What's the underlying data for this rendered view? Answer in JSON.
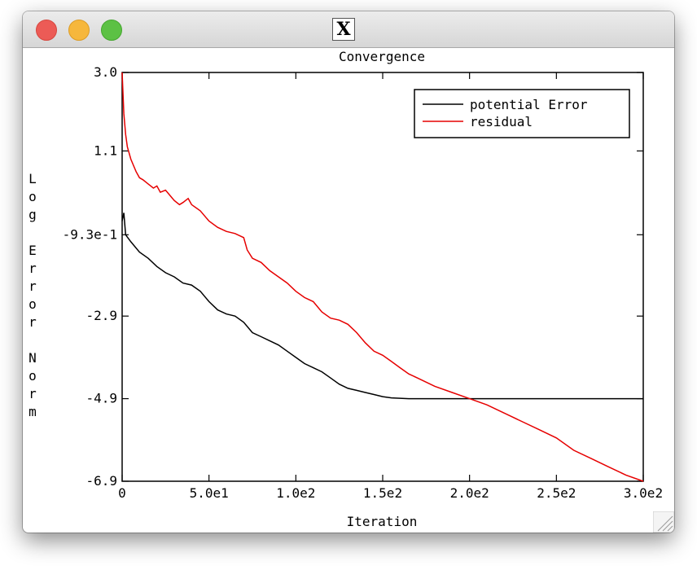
{
  "window": {
    "app_icon": "x11-icon"
  },
  "chart_data": {
    "type": "line",
    "title": "Convergence",
    "xlabel": "Iteration",
    "ylabel": "Log Error Norm",
    "xlim": [
      0,
      300
    ],
    "ylim": [
      -6.9,
      3.0
    ],
    "xticks": [
      0,
      50,
      100,
      150,
      200,
      250,
      300
    ],
    "xtick_labels": [
      "0",
      "5.0e1",
      "1.0e2",
      "1.5e2",
      "2.0e2",
      "2.5e2",
      "3.0e2"
    ],
    "yticks": [
      3.0,
      1.1,
      -0.93,
      -2.9,
      -4.9,
      -6.9
    ],
    "ytick_labels": [
      "3.0",
      "1.1",
      "-9.3e-1",
      "-2.9",
      "-4.9",
      "-6.9"
    ],
    "legend_position": "top-right",
    "grid": false,
    "series": [
      {
        "name": "potential Error",
        "color": "#000000",
        "x": [
          0,
          1,
          2,
          5,
          10,
          15,
          20,
          25,
          30,
          35,
          40,
          45,
          50,
          55,
          60,
          65,
          70,
          75,
          80,
          85,
          90,
          95,
          100,
          105,
          110,
          115,
          120,
          125,
          130,
          135,
          140,
          145,
          150,
          155,
          160,
          165,
          170,
          180,
          190,
          200,
          210,
          220,
          230,
          240,
          250,
          260,
          270,
          280,
          290,
          300
        ],
        "y": [
          -0.6,
          -0.4,
          -0.93,
          -1.1,
          -1.35,
          -1.5,
          -1.7,
          -1.85,
          -1.95,
          -2.1,
          -2.15,
          -2.3,
          -2.55,
          -2.75,
          -2.85,
          -2.9,
          -3.05,
          -3.3,
          -3.4,
          -3.5,
          -3.6,
          -3.75,
          -3.9,
          -4.05,
          -4.15,
          -4.25,
          -4.4,
          -4.55,
          -4.65,
          -4.7,
          -4.75,
          -4.8,
          -4.85,
          -4.88,
          -4.89,
          -4.9,
          -4.9,
          -4.9,
          -4.9,
          -4.9,
          -4.9,
          -4.9,
          -4.9,
          -4.9,
          -4.9,
          -4.9,
          -4.9,
          -4.9,
          -4.9,
          -4.9
        ]
      },
      {
        "name": "residual",
        "color": "#e60000",
        "x": [
          0,
          1,
          2,
          3,
          5,
          8,
          10,
          12,
          15,
          18,
          20,
          22,
          25,
          28,
          30,
          33,
          35,
          38,
          40,
          45,
          50,
          55,
          60,
          65,
          70,
          72,
          75,
          80,
          85,
          90,
          95,
          100,
          105,
          110,
          115,
          120,
          125,
          130,
          135,
          140,
          145,
          150,
          155,
          160,
          165,
          170,
          180,
          190,
          200,
          210,
          220,
          230,
          240,
          250,
          260,
          270,
          280,
          290,
          300
        ],
        "y": [
          3.0,
          2.0,
          1.5,
          1.2,
          0.9,
          0.6,
          0.45,
          0.4,
          0.3,
          0.2,
          0.25,
          0.1,
          0.15,
          0.0,
          -0.1,
          -0.2,
          -0.15,
          -0.05,
          -0.2,
          -0.35,
          -0.6,
          -0.75,
          -0.85,
          -0.9,
          -1.0,
          -1.3,
          -1.5,
          -1.6,
          -1.8,
          -1.95,
          -2.1,
          -2.3,
          -2.45,
          -2.55,
          -2.8,
          -2.95,
          -3.0,
          -3.1,
          -3.3,
          -3.55,
          -3.75,
          -3.85,
          -4.0,
          -4.15,
          -4.3,
          -4.4,
          -4.6,
          -4.75,
          -4.9,
          -5.05,
          -5.25,
          -5.45,
          -5.65,
          -5.85,
          -6.15,
          -6.35,
          -6.55,
          -6.75,
          -6.9
        ]
      }
    ]
  }
}
